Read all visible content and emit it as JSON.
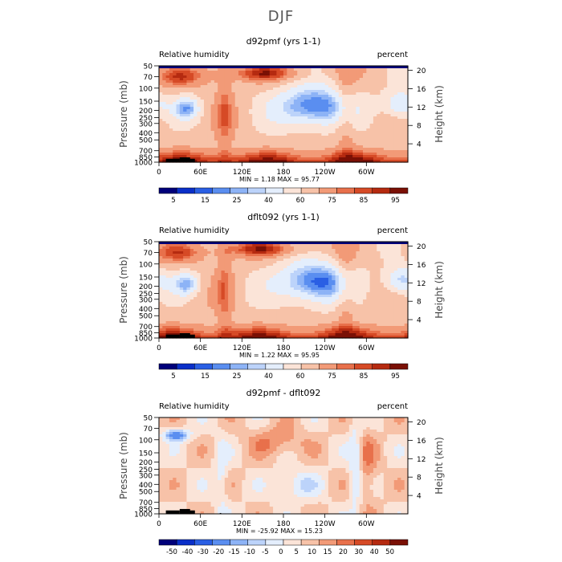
{
  "figure_title": "DJF",
  "chart_data": [
    {
      "type": "heatmap",
      "title": "d92pmf (yrs 1-1)",
      "left_label": "Relative humidity",
      "right_label": "percent",
      "xlabel": "",
      "ylabel": "Pressure (mb)",
      "y2label": "Height (km)",
      "x_ticks": [
        "0",
        "60E",
        "120E",
        "180",
        "120W",
        "60W"
      ],
      "y_ticks": [
        "50",
        "70",
        "100",
        "150",
        "200",
        "250",
        "300",
        "400",
        "500",
        "700",
        "850",
        "1000"
      ],
      "y2_ticks": [
        "20",
        "16",
        "12",
        "8",
        "4"
      ],
      "stats": "MIN =    1.18  MAX =   95.77",
      "colorbar_labels": [
        "5",
        "15",
        "25",
        "40",
        "60",
        "75",
        "85",
        "95"
      ]
    },
    {
      "type": "heatmap",
      "title": "dflt092 (yrs 1-1)",
      "left_label": "Relative humidity",
      "right_label": "percent",
      "xlabel": "",
      "ylabel": "Pressure (mb)",
      "y2label": "Height (km)",
      "x_ticks": [
        "0",
        "60E",
        "120E",
        "180",
        "120W",
        "60W"
      ],
      "y_ticks": [
        "50",
        "70",
        "100",
        "150",
        "200",
        "250",
        "300",
        "400",
        "500",
        "700",
        "850",
        "1000"
      ],
      "y2_ticks": [
        "20",
        "16",
        "12",
        "8",
        "4"
      ],
      "stats": "MIN =    1.22  MAX =   95.95",
      "colorbar_labels": [
        "5",
        "15",
        "25",
        "40",
        "60",
        "75",
        "85",
        "95"
      ]
    },
    {
      "type": "heatmap",
      "title": "d92pmf - dflt092",
      "left_label": "Relative humidity",
      "right_label": "percent",
      "xlabel": "",
      "ylabel": "Pressure (mb)",
      "y2label": "Height (km)",
      "x_ticks": [
        "0",
        "60E",
        "120E",
        "180",
        "120W",
        "60W"
      ],
      "y_ticks": [
        "50",
        "70",
        "100",
        "150",
        "200",
        "250",
        "300",
        "400",
        "500",
        "700",
        "850",
        "1000"
      ],
      "y2_ticks": [
        "20",
        "16",
        "12",
        "8",
        "4"
      ],
      "stats": "MIN =  -25.92  MAX =   15.23",
      "colorbar_labels": [
        "-50",
        "-40",
        "-30",
        "-20",
        "-15",
        "-10",
        "-5",
        "0",
        "5",
        "10",
        "15",
        "20",
        "30",
        "40",
        "50"
      ]
    }
  ],
  "colors": {
    "abs_scale": [
      "#00007a",
      "#0a2fc8",
      "#2a5fe4",
      "#5a8ef0",
      "#8db3f6",
      "#bcd3fa",
      "#e4eefc",
      "#fbe4d8",
      "#f7c2a8",
      "#f29a77",
      "#e8704b",
      "#d64a26",
      "#b52a10",
      "#7a1005"
    ],
    "diff_scale": [
      "#00007a",
      "#0a2fc8",
      "#2a5fe4",
      "#5a8ef0",
      "#8db3f6",
      "#bcd3fa",
      "#e4eefc",
      "#fbe4d8",
      "#f7c2a8",
      "#f29a77",
      "#e8704b",
      "#d64a26",
      "#b52a10",
      "#7a1005"
    ],
    "orography": "#000000"
  }
}
